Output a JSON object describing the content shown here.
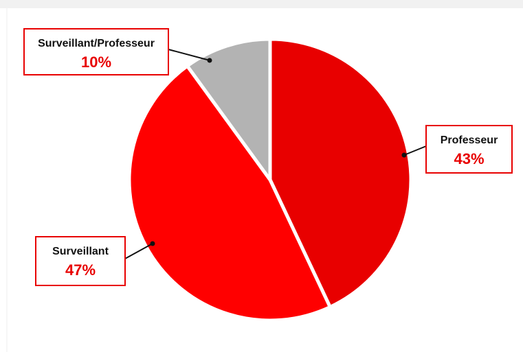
{
  "chart_data": {
    "type": "pie",
    "categories": [
      "Professeur",
      "Surveillant",
      "Surveillant/Professeur"
    ],
    "values": [
      43,
      47,
      10
    ],
    "value_labels": [
      "43%",
      "47%",
      "10%"
    ],
    "colors": [
      "#e80000",
      "#ff0000",
      "#b3b3b3"
    ]
  }
}
